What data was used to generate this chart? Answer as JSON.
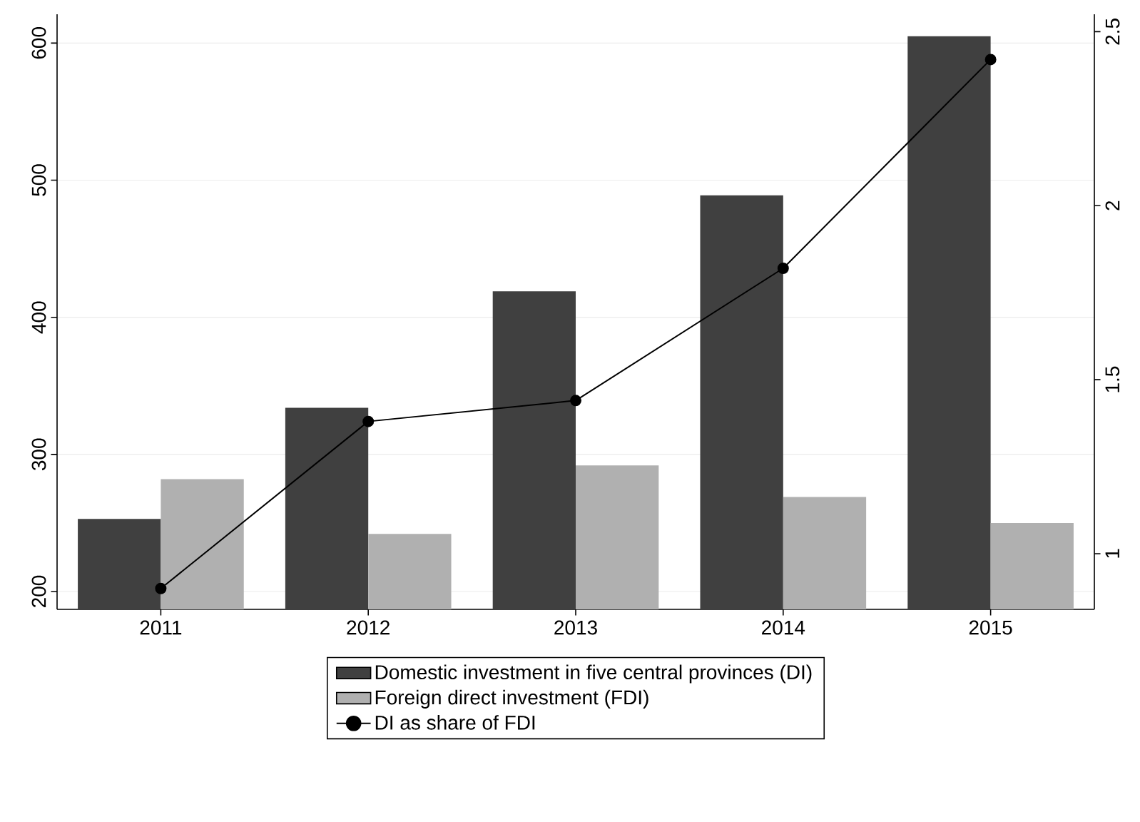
{
  "chart_data": {
    "type": "bar",
    "categories": [
      "2011",
      "2012",
      "2013",
      "2014",
      "2015"
    ],
    "series": [
      {
        "name": "Domestic investment in five central provinces (DI)",
        "color": "#404040",
        "values": [
          253,
          334,
          419,
          489,
          605
        ]
      },
      {
        "name": "Foreign direct investment (FDI)",
        "color": "#b0b0b0",
        "values": [
          282,
          242,
          292,
          269,
          250
        ]
      },
      {
        "name": "DI as share of FDI",
        "type": "line",
        "axis": "y2",
        "color": "#000000",
        "values": [
          0.9,
          1.38,
          1.44,
          1.82,
          2.42
        ]
      }
    ],
    "ylim": [
      187,
      621
    ],
    "yticks": [
      200,
      300,
      400,
      500,
      600
    ],
    "y2lim": [
      0.84,
      2.55
    ],
    "y2ticks": [
      1,
      1.5,
      2,
      2.5
    ],
    "grid": "y",
    "legend": "bottom",
    "marker": "circle",
    "line_style": "solid"
  }
}
